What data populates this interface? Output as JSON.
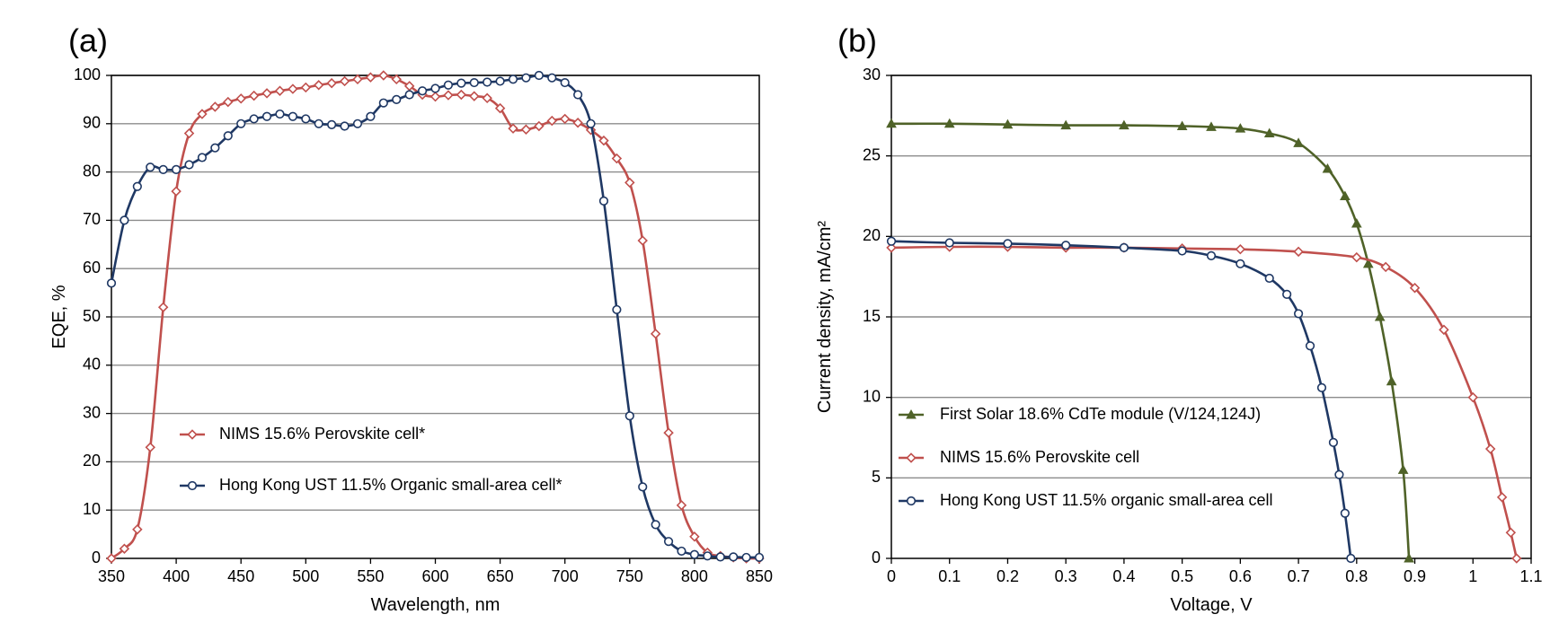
{
  "chart_data": [
    {
      "panel": "(a)",
      "type": "line",
      "xlabel": "Wavelength, nm",
      "ylabel": "EQE, %",
      "xlim": [
        350,
        850
      ],
      "ylim": [
        0,
        100
      ],
      "xticks": [
        350,
        400,
        450,
        500,
        550,
        600,
        650,
        700,
        750,
        800,
        850
      ],
      "yticks": [
        0,
        10,
        20,
        30,
        40,
        50,
        60,
        70,
        80,
        90,
        100
      ],
      "grid": "horizontal",
      "legend_placement": "lower-left",
      "series": [
        {
          "name": "NIMS 15.6% Perovskite cell*",
          "color": "#c0504d",
          "marker": "diamond",
          "x": [
            350,
            360,
            370,
            380,
            390,
            400,
            410,
            420,
            430,
            440,
            450,
            460,
            470,
            480,
            490,
            500,
            510,
            520,
            530,
            540,
            550,
            560,
            570,
            580,
            590,
            600,
            610,
            620,
            630,
            640,
            650,
            660,
            670,
            680,
            690,
            700,
            710,
            720,
            730,
            740,
            750,
            760,
            770,
            780,
            790,
            800,
            810,
            820,
            830,
            840,
            850
          ],
          "y": [
            0,
            2,
            6,
            23,
            52,
            76,
            88,
            92,
            93.5,
            94.5,
            95.2,
            95.8,
            96.3,
            96.8,
            97.2,
            97.5,
            98,
            98.4,
            98.8,
            99.2,
            99.6,
            100,
            99.2,
            97.8,
            96,
            95.6,
            95.9,
            96,
            95.7,
            95.3,
            93.2,
            89,
            88.8,
            89.5,
            90.6,
            91,
            90.2,
            88.7,
            86.5,
            82.8,
            77.8,
            65.8,
            46.5,
            26,
            11,
            4.5,
            1.2,
            0.5,
            0.2,
            0,
            0
          ]
        },
        {
          "name": "Hong Kong UST 11.5% Organic small-area cell*",
          "color": "#1f3864",
          "marker": "circle",
          "x": [
            350,
            360,
            370,
            380,
            390,
            400,
            410,
            420,
            430,
            440,
            450,
            460,
            470,
            480,
            490,
            500,
            510,
            520,
            530,
            540,
            550,
            560,
            570,
            580,
            590,
            600,
            610,
            620,
            630,
            640,
            650,
            660,
            670,
            680,
            690,
            700,
            710,
            720,
            730,
            740,
            750,
            760,
            770,
            780,
            790,
            800,
            810,
            820,
            830,
            840,
            850
          ],
          "y": [
            57,
            70,
            77,
            81,
            80.5,
            80.5,
            81.5,
            83,
            85,
            87.5,
            90,
            91,
            91.5,
            92,
            91.5,
            91,
            90,
            89.8,
            89.5,
            90,
            91.5,
            94.3,
            95,
            96,
            96.8,
            97.3,
            98,
            98.4,
            98.5,
            98.6,
            98.8,
            99.2,
            99.5,
            100,
            99.5,
            98.5,
            96,
            90,
            74,
            51.5,
            29.5,
            14.8,
            7,
            3.5,
            1.5,
            0.8,
            0.5,
            0.3,
            0.3,
            0.2,
            0.2
          ]
        }
      ]
    },
    {
      "panel": "(b)",
      "type": "line",
      "xlabel": "Voltage, V",
      "ylabel": "Current density, mA/cm²",
      "xlim": [
        0,
        1.1
      ],
      "ylim": [
        0,
        30
      ],
      "xticks": [
        0,
        0.1,
        0.2,
        0.3,
        0.4,
        0.5,
        0.6,
        0.7,
        0.8,
        0.9,
        1,
        1.1
      ],
      "yticks": [
        0,
        5,
        10,
        15,
        20,
        25,
        30
      ],
      "grid": "horizontal",
      "legend_placement": "lower-left",
      "series": [
        {
          "name": "First Solar 18.6% CdTe module (V/124,124J)",
          "color": "#4f6228",
          "marker": "triangle",
          "x": [
            0,
            0.1,
            0.2,
            0.3,
            0.4,
            0.5,
            0.55,
            0.6,
            0.65,
            0.7,
            0.75,
            0.78,
            0.8,
            0.82,
            0.84,
            0.86,
            0.88,
            0.89
          ],
          "y": [
            27,
            27,
            26.95,
            26.9,
            26.9,
            26.85,
            26.8,
            26.7,
            26.4,
            25.8,
            24.2,
            22.5,
            20.8,
            18.3,
            15,
            11,
            5.5,
            0
          ]
        },
        {
          "name": "NIMS 15.6% Perovskite cell",
          "color": "#c0504d",
          "marker": "diamond",
          "x": [
            0,
            0.1,
            0.2,
            0.3,
            0.4,
            0.5,
            0.6,
            0.7,
            0.8,
            0.85,
            0.9,
            0.95,
            1,
            1.03,
            1.05,
            1.065,
            1.075
          ],
          "y": [
            19.3,
            19.35,
            19.35,
            19.3,
            19.3,
            19.25,
            19.2,
            19.05,
            18.7,
            18.1,
            16.8,
            14.2,
            10,
            6.8,
            3.8,
            1.6,
            0
          ]
        },
        {
          "name": "Hong Kong UST 11.5% organic small-area cell",
          "color": "#1f3864",
          "marker": "circle",
          "x": [
            0,
            0.1,
            0.2,
            0.3,
            0.4,
            0.5,
            0.55,
            0.6,
            0.65,
            0.68,
            0.7,
            0.72,
            0.74,
            0.76,
            0.77,
            0.78,
            0.79
          ],
          "y": [
            19.7,
            19.6,
            19.55,
            19.45,
            19.3,
            19.1,
            18.8,
            18.3,
            17.4,
            16.4,
            15.2,
            13.2,
            10.6,
            7.2,
            5.2,
            2.8,
            0
          ]
        }
      ]
    }
  ]
}
